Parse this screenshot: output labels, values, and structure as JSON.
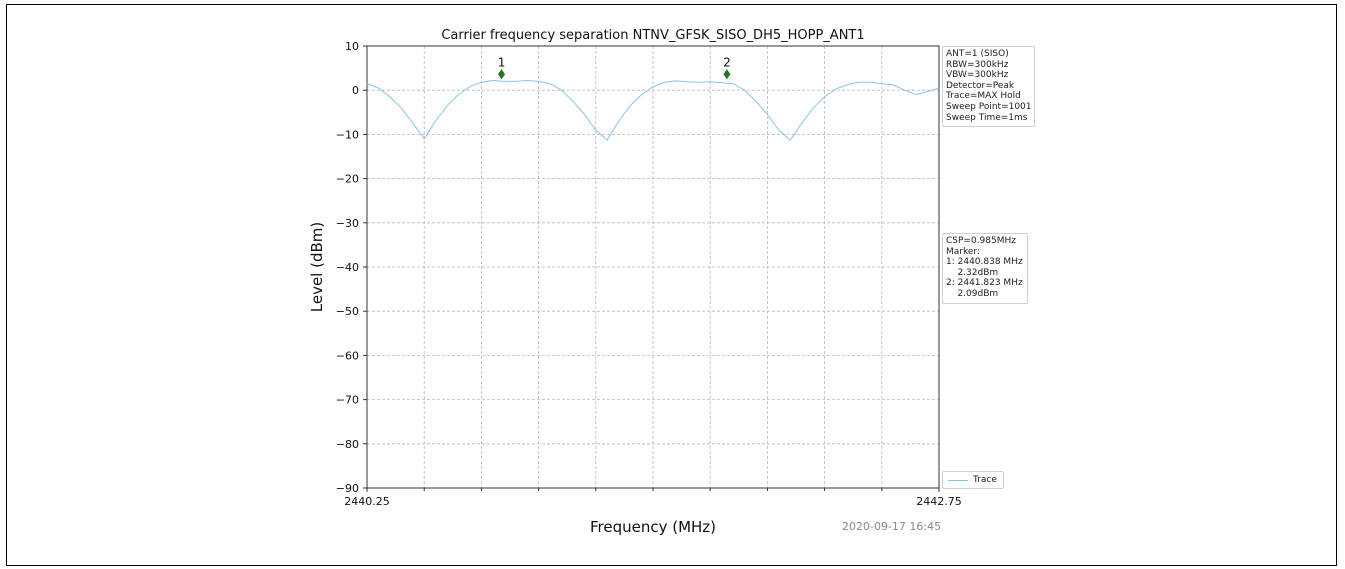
{
  "chart_data": {
    "type": "line",
    "title": "Carrier frequency separation NTNV_GFSK_SISO_DH5_HOPP_ANT1",
    "xlabel": "Frequency (MHz)",
    "ylabel": "Level (dBm)",
    "xlim": [
      2440.25,
      2442.75
    ],
    "ylim": [
      -90,
      10
    ],
    "x_tick_labels": [
      "2440.25",
      "2442.75"
    ],
    "y_ticks": [
      10,
      0,
      -10,
      -20,
      -30,
      -40,
      -50,
      -60,
      -70,
      -80,
      -90
    ],
    "y_tick_labels": [
      "10",
      "0",
      "−10",
      "−20",
      "−30",
      "−40",
      "−50",
      "−60",
      "−70",
      "−80",
      "−90"
    ],
    "grid": true,
    "series": [
      {
        "name": "Trace",
        "color": "#87c4ea",
        "x": [
          2440.25,
          2440.3,
          2440.35,
          2440.4,
          2440.45,
          2440.5,
          2440.55,
          2440.6,
          2440.65,
          2440.7,
          2440.75,
          2440.8,
          2440.85,
          2440.9,
          2440.95,
          2441.0,
          2441.05,
          2441.1,
          2441.15,
          2441.2,
          2441.25,
          2441.3,
          2441.35,
          2441.4,
          2441.45,
          2441.5,
          2441.55,
          2441.6,
          2441.65,
          2441.7,
          2441.75,
          2441.8,
          2441.85,
          2441.9,
          2441.95,
          2442.0,
          2442.05,
          2442.1,
          2442.15,
          2442.2,
          2442.25,
          2442.3,
          2442.35,
          2442.4,
          2442.45,
          2442.5,
          2442.55,
          2442.6,
          2442.65,
          2442.7,
          2442.75
        ],
        "y": [
          1.5,
          0.5,
          -1.5,
          -4,
          -7.5,
          -11,
          -7,
          -3.5,
          -1,
          0.8,
          1.8,
          2.2,
          2.0,
          2.0,
          2.2,
          2.0,
          1.5,
          0,
          -2.5,
          -5.5,
          -9,
          -11.3,
          -7,
          -3.5,
          -1,
          0.8,
          1.8,
          2.1,
          1.9,
          1.8,
          1.9,
          1.7,
          1.5,
          0,
          -2.5,
          -5.5,
          -9,
          -11.3,
          -7.5,
          -4,
          -1.5,
          0.3,
          1.3,
          1.8,
          1.8,
          1.5,
          1.2,
          0,
          -1.0,
          -0.3,
          0.5
        ]
      }
    ],
    "markers": [
      {
        "label": "1",
        "x": 2440.838,
        "y": 3.6,
        "color": "#1a7a1a"
      },
      {
        "label": "2",
        "x": 2441.823,
        "y": 3.6,
        "color": "#1a7a1a"
      }
    ],
    "legend_position": "lower-right"
  },
  "settings_lines": [
    "ANT=1 (SISO)",
    "RBW=300kHz",
    "VBW=300kHz",
    "Detector=Peak",
    "Trace=MAX Hold",
    "Sweep Point=1001",
    "Sweep Time=1ms"
  ],
  "result_lines": [
    "CSP=0.985MHz",
    "Marker:",
    "1: 2440.838 MHz",
    "    2.32dBm",
    "2: 2441.823 MHz",
    "    2.09dBm"
  ],
  "legend_label": "Trace",
  "timestamp": "2020-09-17 16:45"
}
